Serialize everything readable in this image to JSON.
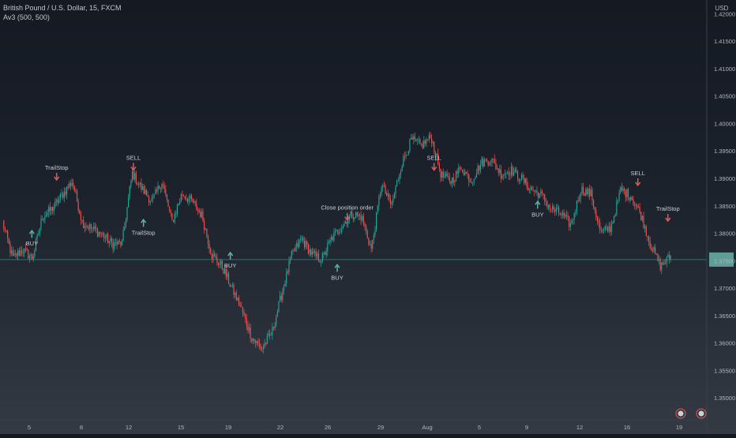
{
  "header": {
    "symbol_line": "British Pound / U.S. Dollar, 15, FXCM",
    "indicator_line": "Av3 (500, 500)"
  },
  "price_axis": {
    "currency": "USD",
    "ticks": [
      "1.42000",
      "1.41500",
      "1.41000",
      "1.40500",
      "1.40000",
      "1.39500",
      "1.39000",
      "1.38500",
      "1.38000",
      "1.37500",
      "1.37000",
      "1.36500",
      "1.36000",
      "1.35500",
      "1.35000"
    ],
    "current_price": 1.3752
  },
  "time_axis": {
    "labels": [
      "5",
      "8",
      "12",
      "15",
      "19",
      "22",
      "26",
      "29",
      "Aug",
      "5",
      "9",
      "12",
      "16",
      "19"
    ]
  },
  "colors": {
    "up": "#26a69a",
    "down": "#ef5350",
    "signal_buy": "#5fb0a8",
    "signal_sell": "#e05a57",
    "price_line": "#3a8f86",
    "price_tag": "#5e9e96"
  },
  "chart_data": {
    "type": "candlestick",
    "symbol": "British Pound / U.S. Dollar",
    "interval": "15",
    "exchange": "FXCM",
    "indicator": "Av3 (500, 500)",
    "y_axis": {
      "label": "USD",
      "range": [
        1.346,
        1.4225
      ]
    },
    "price_path": [
      [
        0,
        1.382
      ],
      [
        1,
        1.3755
      ],
      [
        2,
        1.377
      ],
      [
        3,
        1.3755
      ],
      [
        4,
        1.383
      ],
      [
        5,
        1.3845
      ],
      [
        6,
        1.387
      ],
      [
        7,
        1.3895
      ],
      [
        8,
        1.382
      ],
      [
        9,
        1.3808
      ],
      [
        10,
        1.3798
      ],
      [
        11,
        1.378
      ],
      [
        12,
        1.3782
      ],
      [
        13,
        1.391
      ],
      [
        14,
        1.388
      ],
      [
        15,
        1.3858
      ],
      [
        16,
        1.3895
      ],
      [
        17,
        1.382
      ],
      [
        18,
        1.3872
      ],
      [
        19,
        1.3858
      ],
      [
        20,
        1.3832
      ],
      [
        21,
        1.376
      ],
      [
        22,
        1.374
      ],
      [
        23,
        1.37
      ],
      [
        24,
        1.366
      ],
      [
        25,
        1.361
      ],
      [
        26,
        1.359
      ],
      [
        27,
        1.3618
      ],
      [
        28,
        1.369
      ],
      [
        29,
        1.376
      ],
      [
        30,
        1.379
      ],
      [
        31,
        1.3762
      ],
      [
        32,
        1.3752
      ],
      [
        33,
        1.379
      ],
      [
        34,
        1.3812
      ],
      [
        35,
        1.3835
      ],
      [
        36,
        1.383
      ],
      [
        37,
        1.377
      ],
      [
        38,
        1.389
      ],
      [
        39,
        1.385
      ],
      [
        40,
        1.3925
      ],
      [
        41,
        1.397
      ],
      [
        42,
        1.396
      ],
      [
        43,
        1.3975
      ],
      [
        44,
        1.3905
      ],
      [
        45,
        1.3895
      ],
      [
        46,
        1.392
      ],
      [
        47,
        1.3895
      ],
      [
        48,
        1.3928
      ],
      [
        49,
        1.3935
      ],
      [
        50,
        1.3908
      ],
      [
        51,
        1.3915
      ],
      [
        52,
        1.39
      ],
      [
        53,
        1.388
      ],
      [
        54,
        1.387
      ],
      [
        55,
        1.3845
      ],
      [
        56,
        1.3835
      ],
      [
        57,
        1.3815
      ],
      [
        58,
        1.388
      ],
      [
        59,
        1.3872
      ],
      [
        60,
        1.38
      ],
      [
        61,
        1.381
      ],
      [
        62,
        1.388
      ],
      [
        63,
        1.3868
      ],
      [
        64,
        1.3835
      ],
      [
        65,
        1.3778
      ],
      [
        66,
        1.374
      ],
      [
        67,
        1.3758
      ]
    ],
    "signals": [
      {
        "label": "BUY",
        "side": "buy",
        "t": 4.3,
        "price": 1.3812
      },
      {
        "label": "TrailStop",
        "side": "sell",
        "t": 8.0,
        "price": 1.389
      },
      {
        "label": "SELL",
        "side": "sell",
        "t": 19.5,
        "price": 1.3908
      },
      {
        "label": "TrailStop",
        "side": "buy",
        "t": 21.0,
        "price": 1.3832
      },
      {
        "label": "BUY",
        "side": "buy",
        "t": 34.0,
        "price": 1.3772
      },
      {
        "label": "BUY",
        "side": "buy",
        "t": 50.0,
        "price": 1.375
      },
      {
        "label": "Close position order",
        "side": "sell",
        "t": 51.5,
        "price": 1.3817
      },
      {
        "label": "SELL",
        "side": "sell",
        "t": 64.5,
        "price": 1.3908
      },
      {
        "label": "BUY",
        "side": "buy",
        "t": 80.0,
        "price": 1.3865
      },
      {
        "label": "SELL",
        "side": "sell",
        "t": 95.0,
        "price": 1.388
      },
      {
        "label": "TrailStop",
        "side": "sell",
        "t": 99.5,
        "price": 1.3815
      }
    ]
  }
}
